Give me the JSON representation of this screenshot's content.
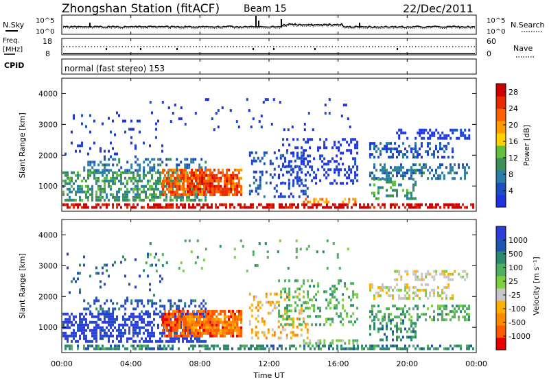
{
  "header": {
    "station": "Zhongshan Station (fitACF)",
    "beam": "Beam 15",
    "date": "22/Dec/2011"
  },
  "noise_panel": {
    "left_label": "N.Sky",
    "right_label": "N.Search",
    "left_ticks": [
      "10^5",
      "10^0"
    ],
    "right_ticks": [
      "10^5",
      "10^0"
    ]
  },
  "freq_panel": {
    "left_label_1": "Freq.",
    "left_label_2": "[MHz]",
    "right_label": "Nave",
    "left_ticks": [
      "18",
      "8"
    ],
    "right_ticks": [
      "60",
      "0"
    ]
  },
  "cpid_panel": {
    "label": "CPID",
    "text": "normal (fast stereo) 153"
  },
  "colors": {
    "power": [
      "#1f33e0",
      "#1a4fbf",
      "#2a7fa8",
      "#3f8f5a",
      "#62c040",
      "#ffd100",
      "#ff9a00",
      "#ff6000",
      "#e82a00",
      "#d10000"
    ],
    "velocity": [
      "#2d3fd8",
      "#1f55b0",
      "#2e8a6e",
      "#4fb060",
      "#7fd040",
      "#c7c7c7",
      "#ffb000",
      "#ff8a00",
      "#ff5a00",
      "#e80000"
    ]
  },
  "chart_data": [
    {
      "type": "heatmap",
      "name": "power",
      "ylabel": "Slant Range [km]",
      "xlabel": "Time UT",
      "ylim": [
        180,
        4500
      ],
      "y_ticks": [
        "1000",
        "2000",
        "3000",
        "4000"
      ],
      "colorbar_label": "Power [dB]",
      "colorbar_ticks": [
        "4",
        "8",
        "12",
        "16",
        "20",
        "24",
        "28"
      ],
      "colorbar_range": [
        0,
        30
      ]
    },
    {
      "type": "heatmap",
      "name": "velocity",
      "ylabel": "Slant Range [km]",
      "xlabel": "Time UT",
      "ylim": [
        180,
        4500
      ],
      "y_ticks": [
        "1000",
        "2000",
        "3000",
        "4000"
      ],
      "colorbar_label": "Velocity [m s⁻¹]",
      "colorbar_ticks": [
        "1000",
        "500",
        "100",
        "25",
        "-25",
        "-100",
        "-500",
        "-1000"
      ]
    }
  ],
  "time_axis": {
    "label": "Time UT",
    "ticks": [
      "00:00",
      "04:00",
      "08:00",
      "12:00",
      "16:00",
      "20:00",
      "00:00"
    ]
  }
}
